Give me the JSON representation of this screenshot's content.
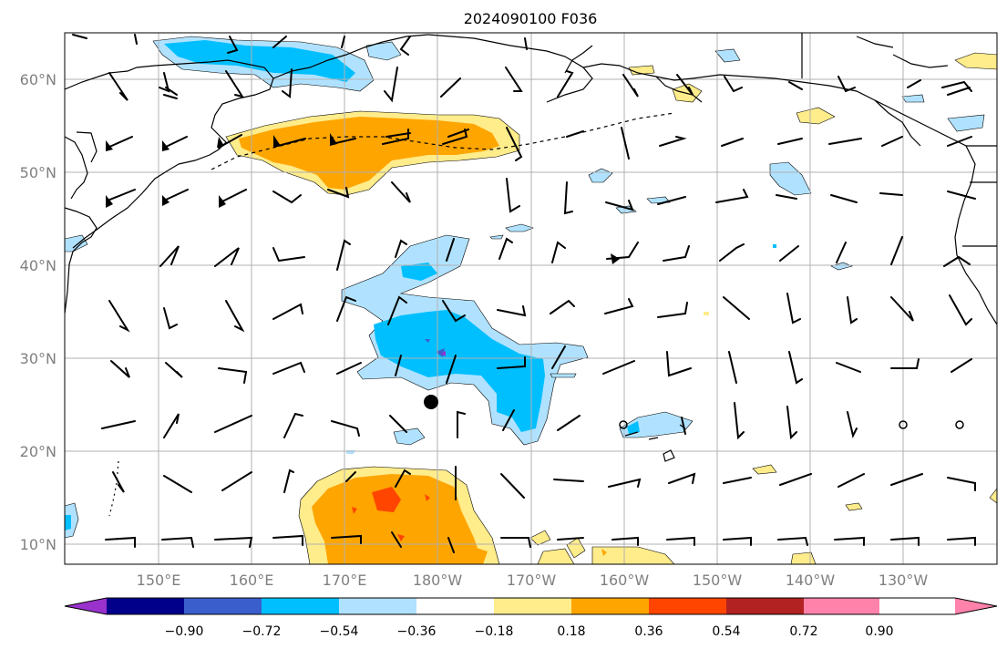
{
  "title": "2024090100 F036",
  "map": {
    "lon_labels": [
      "150°E",
      "160°E",
      "170°E",
      "180°W",
      "170°W",
      "160°W",
      "150°W",
      "140°W",
      "130°W"
    ],
    "lat_labels": [
      "60°N",
      "50°N",
      "40°N",
      "30°N",
      "20°N",
      "10°N"
    ]
  },
  "colorbar": {
    "ticks": [
      "−0.90",
      "−0.72",
      "−0.54",
      "−0.36",
      "−0.18",
      "0.18",
      "0.36",
      "0.54",
      "0.72",
      "0.90"
    ],
    "colors": [
      "#9932cc",
      "#00008b",
      "#3a5fcd",
      "#00bfff",
      "#b0e2ff",
      "#ffffff",
      "#ffec8b",
      "#ffa500",
      "#ff4500",
      "#b22222",
      "#ff82ab"
    ]
  },
  "colors": {
    "neg_light": "#b0e2ff",
    "neg_mid": "#00bfff",
    "neg_dark": "#3a5fcd",
    "neg_purple": "#9932cc",
    "pos_light": "#ffec8b",
    "pos_mid": "#ffa500",
    "pos_dark": "#ff4500"
  }
}
